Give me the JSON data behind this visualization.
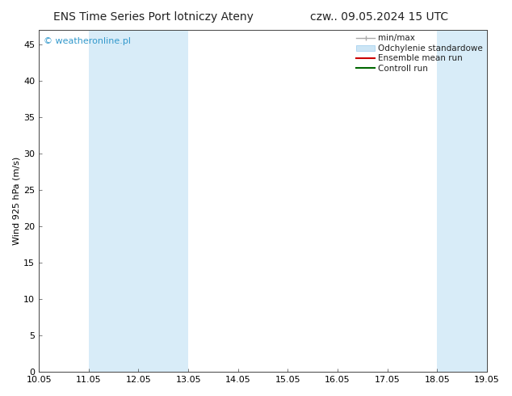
{
  "title_left": "ENS Time Series Port lotniczy Ateny",
  "title_right": "czw.. 09.05.2024 15 UTC",
  "ylabel": "Wind 925 hPa (m/s)",
  "watermark": "© weatheronline.pl",
  "watermark_color": "#3399cc",
  "xlim_start": 0,
  "xlim_end": 9,
  "ylim_min": 0,
  "ylim_max": 47,
  "yticks": [
    0,
    5,
    10,
    15,
    20,
    25,
    30,
    35,
    40,
    45
  ],
  "xtick_labels": [
    "10.05",
    "11.05",
    "12.05",
    "13.05",
    "14.05",
    "15.05",
    "16.05",
    "17.05",
    "18.05",
    "19.05"
  ],
  "bg_color": "#ffffff",
  "plot_bg_color": "#ffffff",
  "shaded_bands": [
    {
      "x_start": 1,
      "x_end": 3,
      "color": "#d8ecf8"
    },
    {
      "x_start": 8,
      "x_end": 9,
      "color": "#d8ecf8"
    }
  ],
  "title_fontsize": 10,
  "tick_fontsize": 8,
  "ylabel_fontsize": 8,
  "watermark_fontsize": 8,
  "legend_fontsize": 7.5
}
